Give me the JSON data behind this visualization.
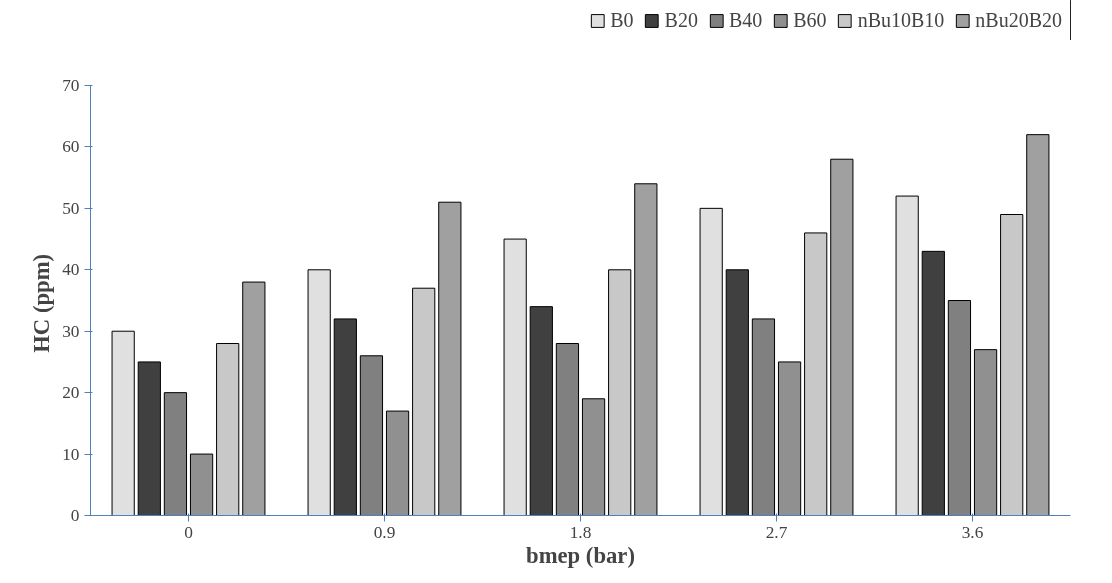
{
  "chart_data": {
    "type": "bar",
    "xlabel": "bmep (bar)",
    "ylabel": "HC  (ppm)",
    "categories": [
      "0",
      "0.9",
      "1.8",
      "2.7",
      "3.6"
    ],
    "series": [
      {
        "name": "B0",
        "color": "#e0e0e0",
        "values": [
          30,
          40,
          45,
          50,
          52
        ]
      },
      {
        "name": "B20",
        "color": "#404040",
        "values": [
          25,
          32,
          34,
          40,
          43
        ]
      },
      {
        "name": "B40",
        "color": "#808080",
        "values": [
          20,
          26,
          28,
          32,
          35
        ]
      },
      {
        "name": "B60",
        "color": "#909090",
        "values": [
          10,
          17,
          19,
          25,
          27
        ]
      },
      {
        "name": "nBu10B10",
        "color": "#c8c8c8",
        "values": [
          28,
          37,
          40,
          46,
          49
        ]
      },
      {
        "name": "nBu20B20",
        "color": "#a0a0a0",
        "values": [
          38,
          51,
          54,
          58,
          62
        ]
      }
    ],
    "ylim": [
      0,
      70
    ],
    "yticks": [
      0,
      10,
      20,
      30,
      40,
      50,
      60,
      70
    ],
    "grid": false,
    "legend": "top right"
  }
}
